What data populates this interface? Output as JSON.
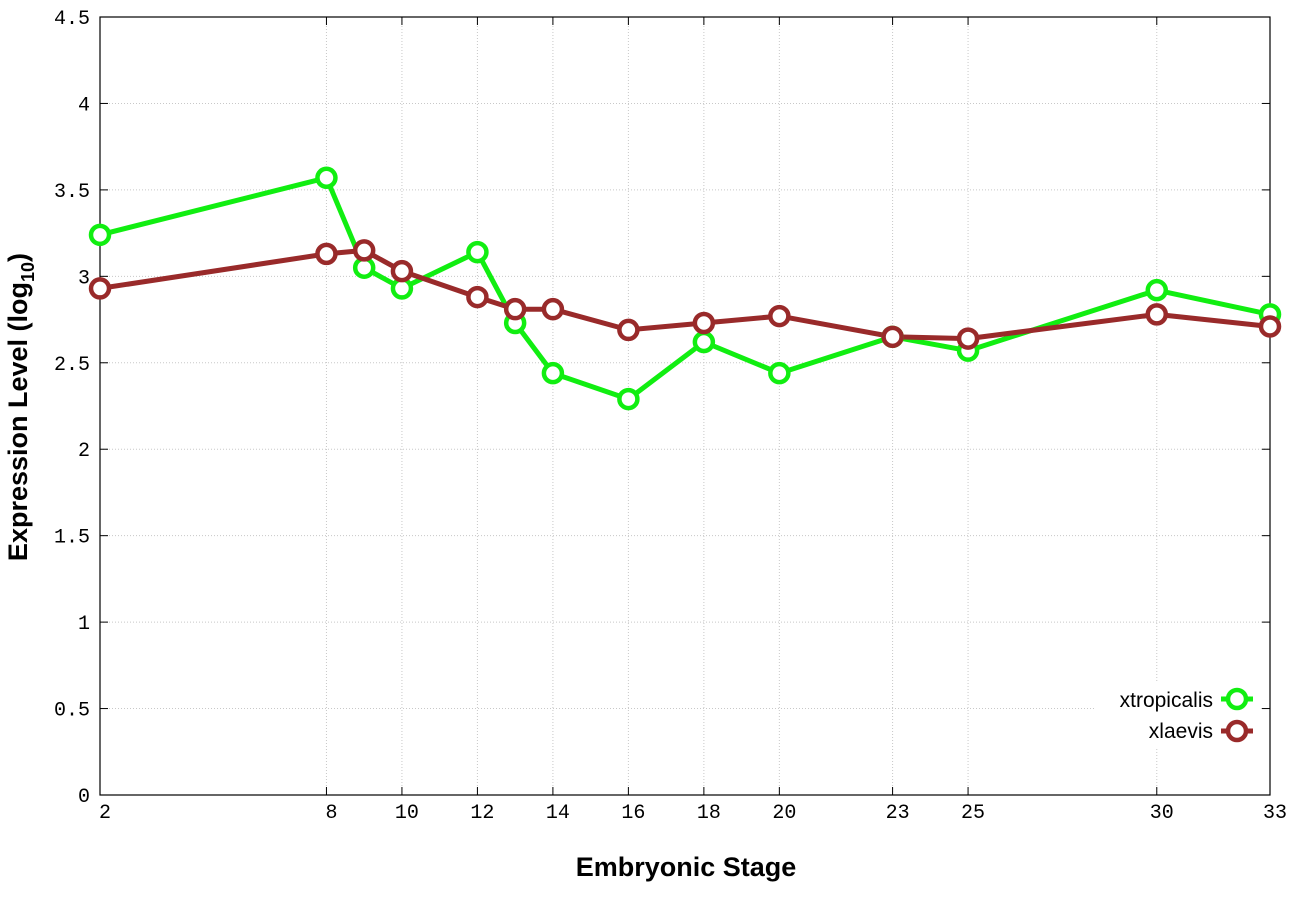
{
  "chart_data": {
    "type": "line",
    "xlabel": "Embryonic Stage",
    "ylabel_main": "Expression Level (log",
    "ylabel_sub": "10",
    "ylabel_close": ")",
    "xlim": [
      2,
      33
    ],
    "ylim": [
      0,
      4.5
    ],
    "x_ticks": [
      2,
      8,
      10,
      12,
      14,
      16,
      18,
      20,
      23,
      25,
      30,
      33
    ],
    "y_ticks": [
      {
        "value": 0,
        "label": "0"
      },
      {
        "value": 0.5,
        "label": "0.5"
      },
      {
        "value": 1,
        "label": "1"
      },
      {
        "value": 1.5,
        "label": "1.5"
      },
      {
        "value": 2,
        "label": "2"
      },
      {
        "value": 2.5,
        "label": "2.5"
      },
      {
        "value": 3,
        "label": "3"
      },
      {
        "value": 3.5,
        "label": "3.5"
      },
      {
        "value": 4,
        "label": "4"
      },
      {
        "value": 4.5,
        "label": "4.5"
      }
    ],
    "grid": true,
    "legend_position": "bottom-right",
    "series": [
      {
        "name": "xtropicalis",
        "color": "#11ee11",
        "points": [
          [
            2,
            3.24
          ],
          [
            8,
            3.57
          ],
          [
            9,
            3.05
          ],
          [
            10,
            2.93
          ],
          [
            12,
            3.14
          ],
          [
            13,
            2.73
          ],
          [
            14,
            2.44
          ],
          [
            16,
            2.29
          ],
          [
            18,
            2.62
          ],
          [
            20,
            2.44
          ],
          [
            23,
            2.65
          ],
          [
            25,
            2.57
          ],
          [
            30,
            2.92
          ],
          [
            33,
            2.78
          ]
        ]
      },
      {
        "name": "xlaevis",
        "color": "#992a2a",
        "points": [
          [
            2,
            2.93
          ],
          [
            8,
            3.13
          ],
          [
            9,
            3.15
          ],
          [
            10,
            3.03
          ],
          [
            12,
            2.88
          ],
          [
            13,
            2.81
          ],
          [
            14,
            2.81
          ],
          [
            16,
            2.69
          ],
          [
            18,
            2.73
          ],
          [
            20,
            2.77
          ],
          [
            23,
            2.65
          ],
          [
            25,
            2.64
          ],
          [
            30,
            2.78
          ],
          [
            33,
            2.71
          ]
        ]
      }
    ]
  }
}
